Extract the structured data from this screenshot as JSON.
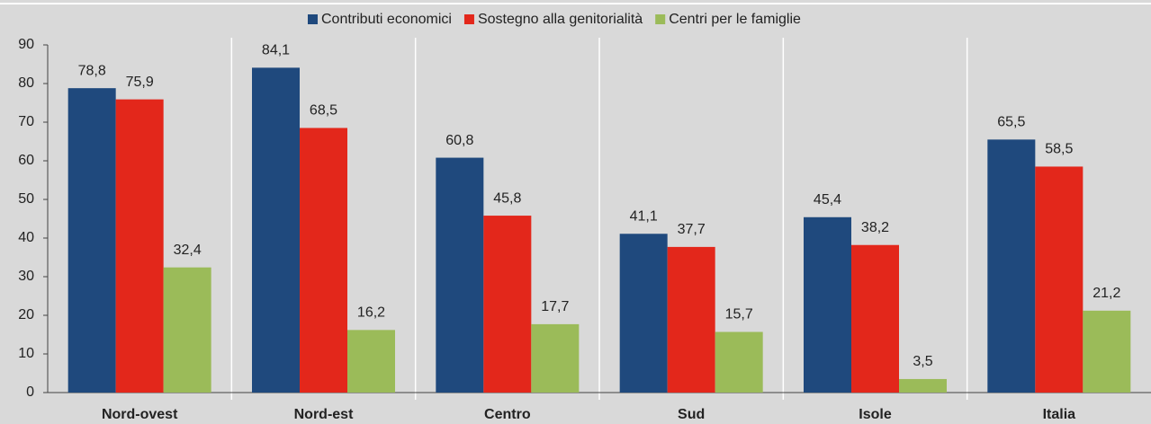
{
  "chart_data": {
    "type": "bar",
    "categories": [
      "Nord-ovest",
      "Nord-est",
      "Centro",
      "Sud",
      "Isole",
      "Italia"
    ],
    "series": [
      {
        "name": "Contributi economici",
        "color": "#1f497d",
        "values": [
          78.8,
          84.1,
          60.8,
          41.1,
          45.4,
          65.5
        ],
        "value_labels": [
          "78,8",
          "84,1",
          "60,8",
          "41,1",
          "45,4",
          "65,5"
        ]
      },
      {
        "name": "Sostegno alla genitorialità",
        "color": "#e3271b",
        "values": [
          75.9,
          68.5,
          45.8,
          37.7,
          38.2,
          58.5
        ],
        "value_labels": [
          "75,9",
          "68,5",
          "45,8",
          "37,7",
          "38,2",
          "58,5"
        ]
      },
      {
        "name": "Centri per le famiglie",
        "color": "#9bbb59",
        "values": [
          32.4,
          16.2,
          17.7,
          15.7,
          3.5,
          21.2
        ],
        "value_labels": [
          "32,4",
          "16,2",
          "17,7",
          "15,7",
          "3,5",
          "21,2"
        ]
      }
    ],
    "ylim": [
      0,
      90
    ],
    "yticks": [
      0,
      10,
      20,
      30,
      40,
      50,
      60,
      70,
      80,
      90
    ],
    "legend": "top"
  }
}
